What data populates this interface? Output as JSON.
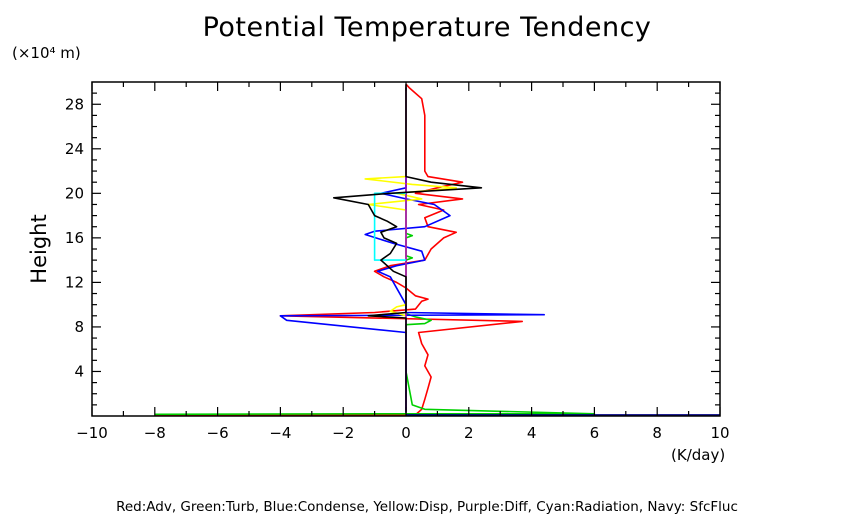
{
  "chart_data": {
    "type": "line",
    "title": "Potential Temperature Tendency",
    "ylabel": "Height",
    "y_unit_label": "(×10⁴ m)",
    "x_unit_label": "(K/day)",
    "caption": "Red:Adv, Green:Turb, Blue:Condense, Yellow:Disp, Purple:Diff, Cyan:Radiation, Navy: SfcFluc",
    "xlim": [
      -10,
      10
    ],
    "ylim": [
      0,
      30
    ],
    "x_ticks": [
      -10,
      -8,
      -6,
      -4,
      -2,
      0,
      2,
      4,
      6,
      8,
      10
    ],
    "x_tick_labels": [
      "−10",
      "−8",
      "−6",
      "−4",
      "−2",
      "0",
      "2",
      "4",
      "6",
      "8",
      "10"
    ],
    "y_ticks": [
      4,
      8,
      12,
      16,
      20,
      24,
      28
    ],
    "y_tick_labels": [
      "4",
      "8",
      "12",
      "16",
      "20",
      "24",
      "28"
    ],
    "grid": false,
    "series": [
      {
        "key": "red",
        "color": "#ff0000",
        "points": [
          [
            -8,
            0.1
          ],
          [
            0.3,
            0.1
          ],
          [
            0.5,
            0.6
          ],
          [
            0.6,
            1.5
          ],
          [
            0.7,
            2.5
          ],
          [
            0.8,
            3.5
          ],
          [
            0.6,
            4.5
          ],
          [
            0.7,
            5.5
          ],
          [
            0.5,
            6.5
          ],
          [
            0.4,
            7.5
          ],
          [
            3.7,
            8.5
          ],
          [
            -4,
            9.0
          ],
          [
            -1,
            9.3
          ],
          [
            0.3,
            9.6
          ],
          [
            0.5,
            10.3
          ],
          [
            0.7,
            10.5
          ],
          [
            0.3,
            10.8
          ],
          [
            0,
            11.5
          ],
          [
            -0.3,
            12.0
          ],
          [
            -0.7,
            12.5
          ],
          [
            -1,
            13.0
          ],
          [
            -0.5,
            13.5
          ],
          [
            0.6,
            14.0
          ],
          [
            0.8,
            15.0
          ],
          [
            1.2,
            16.0
          ],
          [
            1.6,
            16.5
          ],
          [
            0.7,
            17.0
          ],
          [
            0.6,
            17.8
          ],
          [
            1.2,
            18.5
          ],
          [
            0.4,
            19.0
          ],
          [
            1.8,
            19.5
          ],
          [
            0.3,
            20.0
          ],
          [
            1,
            20.5
          ],
          [
            1.8,
            21.0
          ],
          [
            0.7,
            21.5
          ],
          [
            0.6,
            22.0
          ],
          [
            0.6,
            23.0
          ],
          [
            0.6,
            25.0
          ],
          [
            0.6,
            27.0
          ],
          [
            0.5,
            28.5
          ],
          [
            0.1,
            29.5
          ],
          [
            0,
            29.8
          ]
        ]
      },
      {
        "key": "green",
        "color": "#00d000",
        "points": [
          [
            -8,
            0.15
          ],
          [
            0,
            0.2
          ],
          [
            6,
            0.2
          ],
          [
            0.6,
            0.6
          ],
          [
            0.2,
            1.0
          ],
          [
            0,
            4.0
          ],
          [
            0,
            8.2
          ],
          [
            0.6,
            8.3
          ],
          [
            0.8,
            8.6
          ],
          [
            0.3,
            8.9
          ],
          [
            0,
            9.2
          ],
          [
            0,
            14.0
          ],
          [
            0.2,
            14.2
          ],
          [
            0,
            14.4
          ],
          [
            0,
            16.0
          ],
          [
            0.2,
            16.2
          ],
          [
            0,
            16.4
          ],
          [
            0,
            29.5
          ]
        ]
      },
      {
        "key": "blue",
        "color": "#0000ff",
        "points": [
          [
            0,
            0.5
          ],
          [
            0,
            7.5
          ],
          [
            -3.8,
            8.6
          ],
          [
            -4,
            9.0
          ],
          [
            4.4,
            9.1
          ],
          [
            0,
            9.3
          ],
          [
            0,
            10.0
          ],
          [
            -0.5,
            12.5
          ],
          [
            -0.9,
            13.0
          ],
          [
            -0.3,
            13.5
          ],
          [
            0.6,
            14.0
          ],
          [
            0.5,
            14.8
          ],
          [
            -0.4,
            15.5
          ],
          [
            -1.3,
            16.3
          ],
          [
            -1,
            16.6
          ],
          [
            0.6,
            17.0
          ],
          [
            1.4,
            18.0
          ],
          [
            0.9,
            19.0
          ],
          [
            0,
            19.5
          ],
          [
            -0.8,
            20.0
          ],
          [
            0,
            20.5
          ],
          [
            0,
            29.5
          ]
        ]
      },
      {
        "key": "yellow",
        "color": "#ffff00",
        "points": [
          [
            0,
            9.0
          ],
          [
            -0.5,
            9.4
          ],
          [
            -0.3,
            9.8
          ],
          [
            0,
            10.0
          ],
          [
            0,
            18.5
          ],
          [
            -1.2,
            19.0
          ],
          [
            0.5,
            19.5
          ],
          [
            -0.3,
            20.0
          ],
          [
            0.9,
            20.3
          ],
          [
            1.6,
            20.5
          ],
          [
            0.2,
            20.8
          ],
          [
            -1.3,
            21.3
          ],
          [
            0,
            21.5
          ],
          [
            0,
            29.5
          ]
        ]
      },
      {
        "key": "purple",
        "color": "#a000c0",
        "points": [
          [
            0,
            0.3
          ],
          [
            0,
            29.5
          ]
        ]
      },
      {
        "key": "cyan",
        "color": "#00ffff",
        "points": [
          [
            0,
            14
          ],
          [
            -1,
            14
          ],
          [
            -1,
            20
          ],
          [
            0,
            20
          ]
        ]
      },
      {
        "key": "navy",
        "color": "#000080",
        "points": [
          [
            0,
            0.1
          ],
          [
            10,
            0.1
          ]
        ]
      },
      {
        "key": "black",
        "color": "#000000",
        "points": [
          [
            0,
            0.3
          ],
          [
            0,
            8.8
          ],
          [
            -1.2,
            9.0
          ],
          [
            0,
            9.3
          ],
          [
            0,
            12.5
          ],
          [
            -0.4,
            13.0
          ],
          [
            -0.8,
            14.0
          ],
          [
            -0.5,
            14.6
          ],
          [
            -0.3,
            15.5
          ],
          [
            -0.7,
            16.0
          ],
          [
            -0.8,
            16.5
          ],
          [
            -0.3,
            17.0
          ],
          [
            -0.6,
            17.5
          ],
          [
            -1,
            18.0
          ],
          [
            -1.2,
            19.0
          ],
          [
            -2.3,
            19.6
          ],
          [
            -0.5,
            20.0
          ],
          [
            2.4,
            20.5
          ],
          [
            0.8,
            21.0
          ],
          [
            0,
            21.5
          ],
          [
            0,
            29.8
          ]
        ]
      }
    ]
  }
}
